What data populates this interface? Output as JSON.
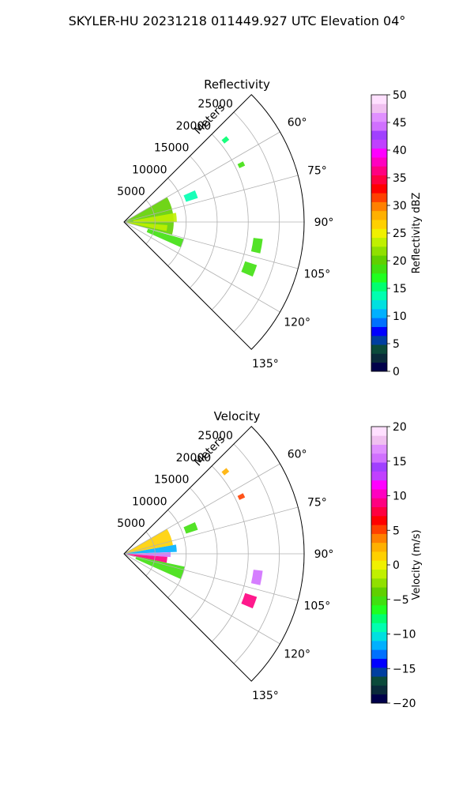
{
  "suptitle": "SKYLER-HU  20231218  011449.927 UTC Elevation 04°",
  "colors": {
    "grid": "#b0b0b0",
    "axis": "#000000",
    "background": "#ffffff"
  },
  "chart_data": [
    {
      "type": "heatmap",
      "projection": "polar-sector",
      "title": "Reflectivity",
      "radial_label": "Meters",
      "theta_range_deg": [
        45,
        135
      ],
      "r_range_m": [
        0,
        29000
      ],
      "r_ticks": [
        5000,
        10000,
        15000,
        20000,
        25000
      ],
      "r_tick_labels": [
        "5000",
        "10000",
        "15000",
        "20000",
        "25000"
      ],
      "theta_ticks_deg": [
        60,
        75,
        90,
        105,
        120,
        135
      ],
      "theta_tick_labels": [
        "60°",
        "75°",
        "90°",
        "105°",
        "120°",
        "135°"
      ],
      "grid": true,
      "colorbar": {
        "label": "Reflectivity dBZ",
        "range": [
          0,
          50
        ],
        "ticks": [
          0,
          5,
          10,
          15,
          20,
          25,
          30,
          35,
          40,
          45,
          50
        ],
        "tick_labels": [
          "0",
          "5",
          "10",
          "15",
          "20",
          "25",
          "30",
          "35",
          "40",
          "45",
          "50"
        ],
        "stops": [
          "#00004a",
          "#0a2a3a",
          "#0b4a3a",
          "#003fa0",
          "#0000ff",
          "#0070ff",
          "#00b0ff",
          "#00e0e0",
          "#00ffb0",
          "#00ff70",
          "#20ff20",
          "#40e010",
          "#60d000",
          "#90e000",
          "#c0f000",
          "#f0f000",
          "#ffd000",
          "#ffb000",
          "#ff8000",
          "#ff4000",
          "#ff0000",
          "#ff0040",
          "#ff0080",
          "#ff00c0",
          "#ff00ff",
          "#c040ff",
          "#a040ff",
          "#d070ff",
          "#e090ff",
          "#f0c0f0",
          "#ffe0ff"
        ]
      },
      "echoes": [
        {
          "theta": [
            60,
            105
          ],
          "r": [
            0,
            8000
          ],
          "value": 20
        },
        {
          "theta": [
            80,
            90
          ],
          "r": [
            1500,
            8500
          ],
          "value": 24
        },
        {
          "theta": [
            94,
            102
          ],
          "r": [
            500,
            7000
          ],
          "value": 24
        },
        {
          "theta": [
            106,
            114
          ],
          "r": [
            4000,
            10000
          ],
          "value": 19
        },
        {
          "theta": [
            66,
            72
          ],
          "r": [
            10500,
            12500
          ],
          "value": 14
        },
        {
          "theta": [
            97,
            103
          ],
          "r": [
            21000,
            22500
          ],
          "value": 19
        },
        {
          "theta": [
            108,
            113
          ],
          "r": [
            20500,
            22500
          ],
          "value": 19
        },
        {
          "theta": [
            63,
            65
          ],
          "r": [
            20500,
            21500
          ],
          "value": 18
        },
        {
          "theta": [
            50,
            52
          ],
          "r": [
            20500,
            21500
          ],
          "value": 16
        }
      ]
    },
    {
      "type": "heatmap",
      "projection": "polar-sector",
      "title": "Velocity",
      "radial_label": "Meters",
      "theta_range_deg": [
        45,
        135
      ],
      "r_range_m": [
        0,
        29000
      ],
      "r_ticks": [
        5000,
        10000,
        15000,
        20000,
        25000
      ],
      "r_tick_labels": [
        "5000",
        "10000",
        "15000",
        "20000",
        "25000"
      ],
      "theta_ticks_deg": [
        60,
        75,
        90,
        105,
        120,
        135
      ],
      "theta_tick_labels": [
        "60°",
        "75°",
        "90°",
        "105°",
        "120°",
        "135°"
      ],
      "grid": true,
      "colorbar": {
        "label": "Velocity (m/s)",
        "range": [
          -20,
          20
        ],
        "ticks": [
          -20,
          -15,
          -10,
          -5,
          0,
          5,
          10,
          15,
          20
        ],
        "tick_labels": [
          "−20",
          "−15",
          "−10",
          "−5",
          "0",
          "5",
          "10",
          "15",
          "20"
        ],
        "stops": [
          "#00004a",
          "#0a2a3a",
          "#0b4a3a",
          "#003fa0",
          "#0000ff",
          "#0070ff",
          "#00b0ff",
          "#00e0e0",
          "#00ffb0",
          "#00ff70",
          "#20ff20",
          "#40e010",
          "#60d000",
          "#90e000",
          "#c0f000",
          "#f0f000",
          "#ffd000",
          "#ffb000",
          "#ff8000",
          "#ff4000",
          "#ff0000",
          "#ff0040",
          "#ff0080",
          "#ff00c0",
          "#ff00ff",
          "#c040ff",
          "#a040ff",
          "#d070ff",
          "#e090ff",
          "#f0c0f0",
          "#ffe0ff"
        ]
      },
      "echoes": [
        {
          "theta": [
            60,
            80
          ],
          "r": [
            0,
            8000
          ],
          "value": 1
        },
        {
          "theta": [
            80,
            88
          ],
          "r": [
            0,
            8500
          ],
          "value": -11
        },
        {
          "theta": [
            88,
            94
          ],
          "r": [
            0,
            7500
          ],
          "value": 16
        },
        {
          "theta": [
            94,
            102
          ],
          "r": [
            500,
            7000
          ],
          "value": 9
        },
        {
          "theta": [
            102,
            114
          ],
          "r": [
            2000,
            10000
          ],
          "value": -5
        },
        {
          "theta": [
            66,
            72
          ],
          "r": [
            10500,
            12500
          ],
          "value": -5
        },
        {
          "theta": [
            97,
            103
          ],
          "r": [
            21000,
            22500
          ],
          "value": 15
        },
        {
          "theta": [
            108,
            113
          ],
          "r": [
            20500,
            22500
          ],
          "value": 9
        },
        {
          "theta": [
            63,
            65
          ],
          "r": [
            20500,
            21500
          ],
          "value": 5
        },
        {
          "theta": [
            50,
            52
          ],
          "r": [
            20500,
            21500
          ],
          "value": 3
        }
      ]
    }
  ]
}
